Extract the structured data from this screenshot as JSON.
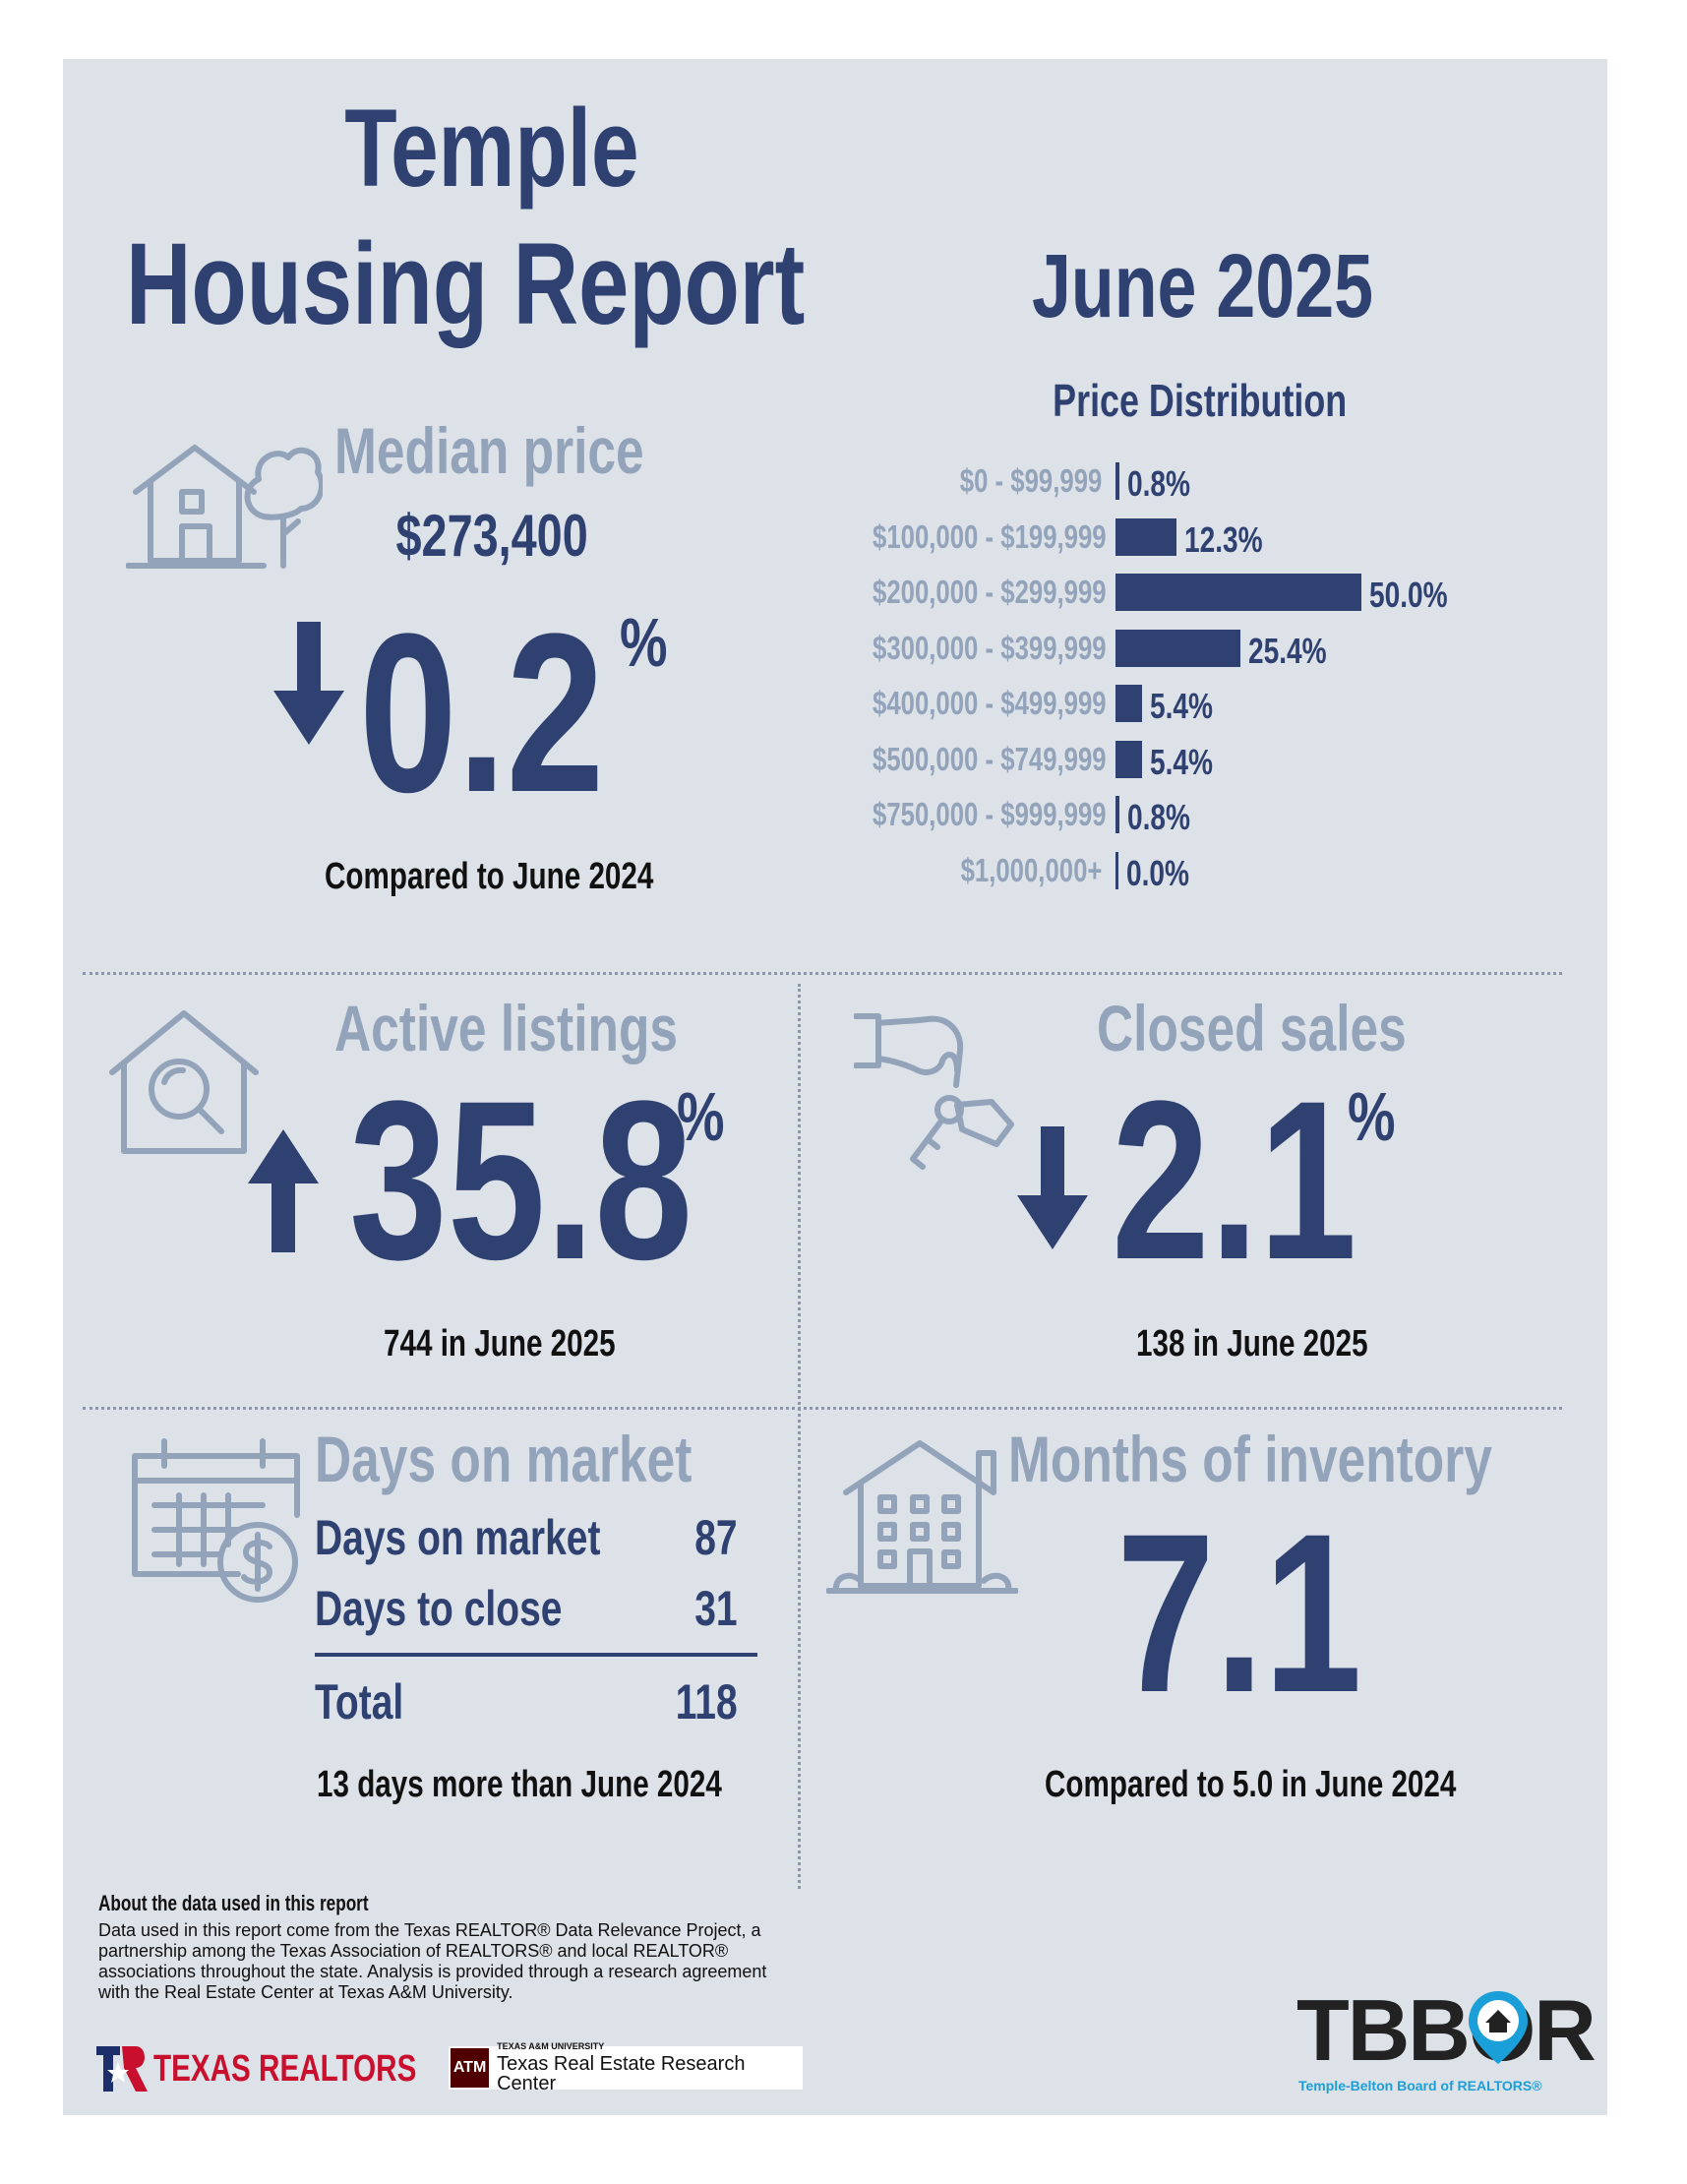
{
  "header": {
    "title_line1": "Temple",
    "title_line2": "Housing Report",
    "month": "June 2025"
  },
  "median_price": {
    "heading": "Median price",
    "value": "$273,400",
    "change": "0.2",
    "percent_sign": "%",
    "direction": "down",
    "caption": "Compared to June 2024",
    "icon": "house-with-tree-icon"
  },
  "price_distribution": {
    "title": "Price Distribution",
    "rows": [
      {
        "label": "$0 - $99,999",
        "value": "0.8%",
        "pct": 0.8
      },
      {
        "label": "$100,000 - $199,999",
        "value": "12.3%",
        "pct": 12.3
      },
      {
        "label": "$200,000 - $299,999",
        "value": "50.0%",
        "pct": 50.0
      },
      {
        "label": "$300,000 - $399,999",
        "value": "25.4%",
        "pct": 25.4
      },
      {
        "label": "$400,000 - $499,999",
        "value": "5.4%",
        "pct": 5.4
      },
      {
        "label": "$500,000 - $749,999",
        "value": "5.4%",
        "pct": 5.4
      },
      {
        "label": "$750,000 - $999,999",
        "value": "0.8%",
        "pct": 0.8
      },
      {
        "label": "$1,000,000+",
        "value": "0.0%",
        "pct": 0.0
      }
    ]
  },
  "active_listings": {
    "heading": "Active listings",
    "change": "35.8",
    "percent_sign": "%",
    "direction": "up",
    "caption": "744 in June 2025",
    "icon": "house-search-icon"
  },
  "closed_sales": {
    "heading": "Closed sales",
    "change": "2.1",
    "percent_sign": "%",
    "direction": "down",
    "caption": "138 in June 2025",
    "icon": "hand-keys-icon"
  },
  "days_on_market": {
    "heading": "Days on market",
    "rows": [
      {
        "label": "Days on market",
        "value": "87"
      },
      {
        "label": "Days to close",
        "value": "31"
      }
    ],
    "total_label": "Total",
    "total_value": "118",
    "caption": "13 days more than June 2024",
    "icon": "calendar-dollar-icon"
  },
  "months_inventory": {
    "heading": "Months of inventory",
    "value": "7.1",
    "caption": "Compared to 5.0 in June 2024",
    "icon": "apartment-building-icon"
  },
  "footer": {
    "about_heading": "About the data used in this report",
    "about_text": "Data used in this report come from the Texas REALTOR® Data Relevance Project, a partnership among the Texas Association of REALTORS® and local REALTOR® associations throughout the state. Analysis is provided through a research agreement with the Real Estate Center at Texas A&M University.",
    "logo_texas_realtors": "TEXAS REALTORS",
    "logo_tamu_small": "TEXAS A&M UNIVERSITY",
    "logo_tamu": "Texas Real Estate Research Center",
    "logo_tbbor": "TBBOR",
    "logo_tbbor_sub": "Temple-Belton Board of REALTORS®"
  },
  "colors": {
    "navy": "#2f4170",
    "muted": "#92a3ba",
    "card_bg": "#dde1e8",
    "tbbor_blue": "#1a9fd8",
    "tamu_maroon": "#500000",
    "texas_red": "#c8102e"
  }
}
